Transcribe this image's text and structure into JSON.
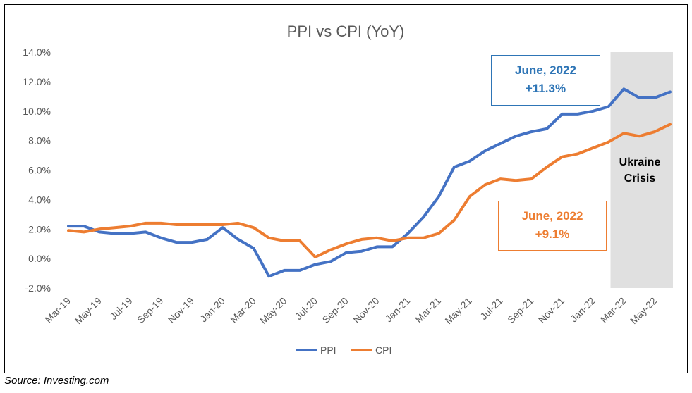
{
  "chart_data": {
    "type": "line",
    "title": "PPI vs CPI (YoY)",
    "x_categories": [
      "Mar-19",
      "Apr-19",
      "May-19",
      "Jun-19",
      "Jul-19",
      "Aug-19",
      "Sep-19",
      "Oct-19",
      "Nov-19",
      "Dec-19",
      "Jan-20",
      "Feb-20",
      "Mar-20",
      "Apr-20",
      "May-20",
      "Jun-20",
      "Jul-20",
      "Aug-20",
      "Sep-20",
      "Oct-20",
      "Nov-20",
      "Dec-20",
      "Jan-21",
      "Feb-21",
      "Mar-21",
      "Apr-21",
      "May-21",
      "Jun-21",
      "Jul-21",
      "Aug-21",
      "Sep-21",
      "Oct-21",
      "Nov-21",
      "Dec-21",
      "Jan-22",
      "Feb-22",
      "Mar-22",
      "Apr-22",
      "May-22",
      "Jun-22"
    ],
    "x_tick_labels": [
      "Mar-19",
      "May-19",
      "Jul-19",
      "Sep-19",
      "Nov-19",
      "Jan-20",
      "Mar-20",
      "May-20",
      "Jul-20",
      "Sep-20",
      "Nov-20",
      "Jan-21",
      "Mar-21",
      "May-21",
      "Jul-21",
      "Sep-21",
      "Nov-21",
      "Jan-22",
      "Mar-22",
      "May-22"
    ],
    "y_tick_labels": [
      "-2.0%",
      "0.0%",
      "2.0%",
      "4.0%",
      "6.0%",
      "8.0%",
      "10.0%",
      "12.0%",
      "14.0%"
    ],
    "ylim": [
      -2,
      14
    ],
    "grid": false,
    "legend_position": "bottom",
    "series": [
      {
        "name": "PPI",
        "color": "#4472c4",
        "values": [
          2.2,
          2.2,
          1.8,
          1.7,
          1.7,
          1.8,
          1.4,
          1.1,
          1.1,
          1.3,
          2.1,
          1.3,
          0.7,
          -1.2,
          -0.8,
          -0.8,
          -0.4,
          -0.2,
          0.4,
          0.5,
          0.8,
          0.8,
          1.7,
          2.8,
          4.2,
          6.2,
          6.6,
          7.3,
          7.8,
          8.3,
          8.6,
          8.8,
          9.8,
          9.8,
          10.0,
          10.3,
          11.5,
          10.9,
          10.9,
          11.3
        ]
      },
      {
        "name": "CPI",
        "color": "#ed7d31",
        "values": [
          1.9,
          1.8,
          2.0,
          2.1,
          2.2,
          2.4,
          2.4,
          2.3,
          2.3,
          2.3,
          2.3,
          2.4,
          2.1,
          1.4,
          1.2,
          1.2,
          0.1,
          0.6,
          1.0,
          1.3,
          1.4,
          1.2,
          1.4,
          1.4,
          1.7,
          2.6,
          4.2,
          5.0,
          5.4,
          5.3,
          5.4,
          6.2,
          6.9,
          7.1,
          7.5,
          7.9,
          8.5,
          8.3,
          8.6,
          9.1
        ]
      }
    ],
    "shaded_region": {
      "from": "Feb-22",
      "to": "Jun-22",
      "color": "#e0e0e0",
      "label_line1": "Ukraine",
      "label_line2": "Crisis"
    },
    "annotations": {
      "ppi": {
        "line1": "June, 2022",
        "line2": "+11.3%",
        "color": "#2e75b6"
      },
      "cpi": {
        "line1": "June, 2022",
        "line2": "+9.1%",
        "color": "#ed7d31"
      }
    }
  },
  "source_text": "Source:  Investing.com"
}
